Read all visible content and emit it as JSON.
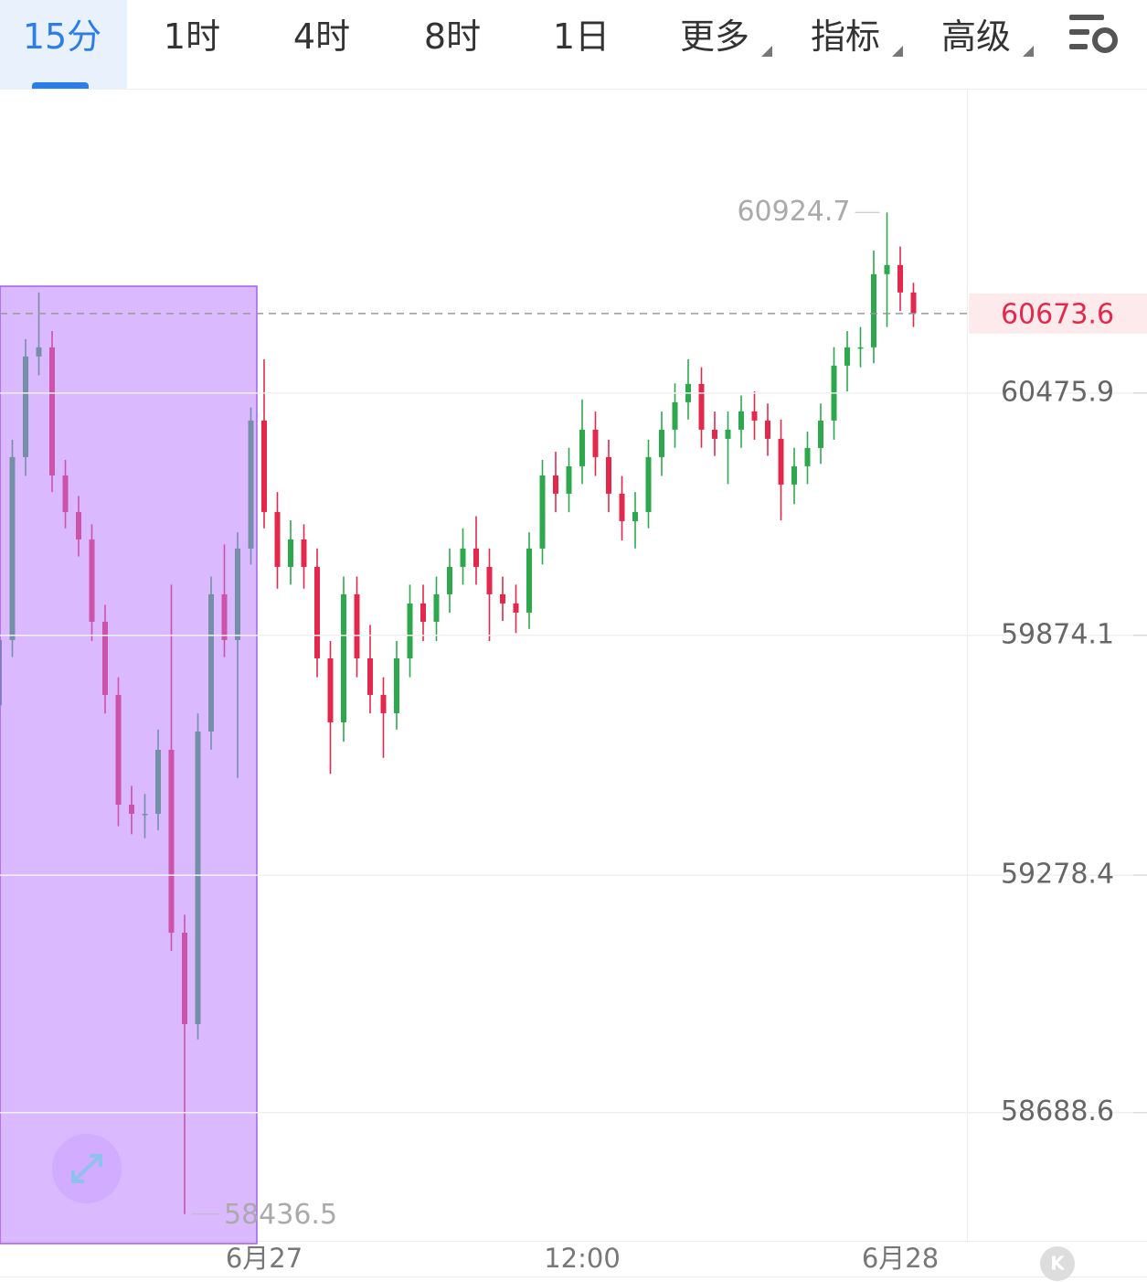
{
  "toolbar": {
    "tabs": [
      "15分",
      "1时",
      "4时",
      "8时",
      "1日",
      "更多",
      "指标",
      "高级"
    ],
    "active": 0
  },
  "chart_data": {
    "type": "candlestick",
    "categories": [
      null,
      null,
      null,
      null,
      null,
      null,
      null,
      null,
      null,
      null,
      null,
      null,
      null,
      null,
      null,
      null,
      null,
      null,
      null,
      null,
      "6月27",
      null,
      null,
      null,
      null,
      null,
      null,
      null,
      null,
      null,
      null,
      null,
      null,
      null,
      null,
      null,
      null,
      null,
      null,
      null,
      null,
      null,
      null,
      null,
      "12:00",
      null,
      null,
      null,
      null,
      null,
      null,
      null,
      null,
      null,
      null,
      null,
      null,
      null,
      null,
      null,
      null,
      null,
      null,
      null,
      null,
      null,
      null,
      null,
      "6月28",
      null
    ],
    "open": [
      59700,
      59862.5,
      60316.9,
      60566.8,
      60589.5,
      60271.4,
      60180.5,
      60112.4,
      59907.9,
      59726.1,
      59453.5,
      59430.8,
      59430.8,
      59589.8,
      59135.4,
      58908.2,
      59635.3,
      59976.1,
      59862.5,
      60089.7,
      60407.7,
      60180.5,
      60044.2,
      60112.4,
      60044.2,
      59817.0,
      59658.0,
      59976.1,
      59817.0,
      59726.1,
      59680.7,
      59817.0,
      59953.3,
      59907.9,
      59976.1,
      60044.2,
      60089.7,
      60044.2,
      59976.1,
      59953.3,
      59930.6,
      60089.7,
      60271.4,
      60226.0,
      60294.1,
      60385.0,
      60316.9,
      60226.0,
      60157.8,
      60180.5,
      60316.9,
      60385.0,
      60453.2,
      60498.6,
      60385.0,
      60362.3,
      60385.0,
      60430.5,
      60407.7,
      60362.3,
      60248.7,
      60294.1,
      60339.6,
      60407.7,
      60544.1,
      60589.5,
      60589.5,
      60771.3,
      60794.0,
      60725.8
    ],
    "high": [
      59910,
      60360,
      60610,
      60726,
      60630,
      60310,
      60220,
      60150,
      59950,
      59770,
      59500,
      59480,
      59640,
      60000,
      59180,
      59680,
      60020,
      60100,
      60130,
      60440,
      60560,
      60230,
      60160,
      60150,
      60090,
      59860,
      60020,
      60020,
      59900,
      59770,
      59860,
      60000,
      60000,
      60020,
      60090,
      60140,
      60170,
      60090,
      60020,
      60000,
      60130,
      60310,
      60330,
      60340,
      60460,
      60430,
      60360,
      60270,
      60230,
      60360,
      60430,
      60500,
      60560,
      60540,
      60430,
      60430,
      60470,
      60480,
      60450,
      60410,
      60340,
      60380,
      60450,
      60590,
      60630,
      60640,
      60830,
      60924.7,
      60840,
      60750
    ],
    "low": [
      59650,
      59820,
      60270,
      60520,
      60230,
      60140,
      60070,
      59860,
      59680,
      59400,
      59380,
      59370,
      59390,
      59090,
      58436.5,
      58870,
      59590,
      59820,
      59520,
      60050,
      60140,
      59990,
      60000,
      59990,
      59770,
      59530,
      59610,
      59770,
      59680,
      59570,
      59640,
      59770,
      59860,
      59860,
      59930,
      60000,
      60000,
      59860,
      59910,
      59880,
      59890,
      60050,
      60180,
      60180,
      60250,
      60270,
      60180,
      60110,
      60090,
      60140,
      60270,
      60340,
      60410,
      60340,
      60320,
      60250,
      60340,
      60360,
      60320,
      60160,
      60200,
      60250,
      60300,
      60360,
      60480,
      60540,
      60550,
      60640,
      60680,
      60640
    ],
    "close": [
      59862.5,
      60316.9,
      60566.8,
      60589.5,
      60271.4,
      60180.5,
      60112.4,
      59907.9,
      59726.1,
      59453.5,
      59430.8,
      59430.8,
      59589.8,
      59135.4,
      58908.2,
      59635.3,
      59976.1,
      59862.5,
      60089.7,
      60407.7,
      60180.5,
      60044.2,
      60112.4,
      60044.2,
      59817.0,
      59658.0,
      59976.1,
      59817.0,
      59726.1,
      59680.7,
      59817.0,
      59953.3,
      59907.9,
      59976.1,
      60044.2,
      60089.7,
      60044.2,
      59976.1,
      59953.3,
      59930.6,
      60089.7,
      60271.4,
      60226.0,
      60294.1,
      60385.0,
      60316.9,
      60226.0,
      60157.8,
      60180.5,
      60316.9,
      60385.0,
      60453.2,
      60498.6,
      60385.0,
      60362.3,
      60385.0,
      60430.5,
      60407.7,
      60362.3,
      60248.7,
      60294.1,
      60339.6,
      60407.7,
      60544.1,
      60589.5,
      60589.5,
      60771.3,
      60794.0,
      60725.8,
      60673.6
    ],
    "up_color": "#2da84c",
    "down_color": "#e3284b",
    "ylim": [
      58370,
      61232
    ],
    "yticks": [
      60475.9,
      59874.1,
      59278.4,
      58688.6
    ],
    "grid": true,
    "last_price": 60673.6,
    "max_label": 60924.7,
    "min_label": 58436.5
  }
}
